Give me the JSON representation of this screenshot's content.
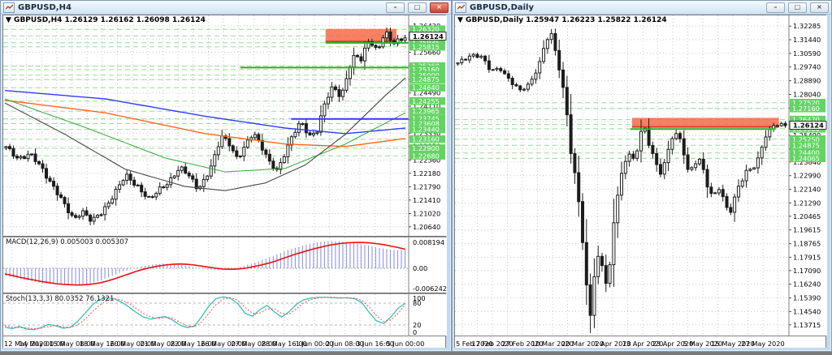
{
  "window_controls": {
    "minimize": "–",
    "restore": "□",
    "close": "×"
  },
  "left_window": {
    "title": "GBPUSD,H4",
    "ohlc_label": "▼ GBPUSD,H4  1.26129 1.26162 1.26098 1.26124",
    "macd_label": "MACD(12,26,9) 0.005003 0.005307",
    "stoch_label": "Stoch(13,3,3) 80.0352 76.1321",
    "macd_scale": [
      "0.008194",
      "0.00",
      "-0.006242"
    ],
    "stoch_scale": [
      "100",
      "80",
      "20",
      "0"
    ],
    "current_price": "1.26124",
    "time_labels": [
      "12 May 2020",
      "14 May 00:00",
      "15 May 08:00",
      "18 May 16:00",
      "20 May 00:00",
      "21 May 08:00",
      "22 May 16:00",
      "26 May 00:00",
      "27 May 08:00",
      "28 May 16:00",
      "1 Jun 00:00",
      "2 Jun 08:00",
      "3 Jun 16:00",
      "5 Jun 00:00"
    ],
    "price_ticks": [
      1.2642,
      1.2604,
      1.2566,
      1.2527,
      1.2488,
      1.2449,
      1.2411,
      1.2372,
      1.2333,
      1.2295,
      1.2256,
      1.2218,
      1.2179,
      1.2141,
      1.2102,
      1.2064
    ],
    "level_prices": [
      1.2632,
      1.2613,
      1.25935,
      1.25815,
      1.2526,
      1.2516,
      1.25,
      1.24875,
      1.2464,
      1.24255,
      1.23965,
      1.23745,
      1.23608,
      1.2344,
      1.2316,
      1.229,
      1.2268
    ]
  },
  "right_window": {
    "title": "GBPUSD,Daily",
    "ohlc_label": "▼ GBPUSD,Daily  1.25947 1.26223 1.25822 1.26124",
    "current_price": "1.26124",
    "time_labels": [
      "5 Feb 2020",
      "17 Feb 2020",
      "27 Feb 2020",
      "10 Mar 2020",
      "20 Mar 2020",
      "1 Apr 2020",
      "13 Apr 2020",
      "23 Apr 2020",
      "5 May 2020",
      "15 May 2020",
      "27 May 2020"
    ],
    "price_ticks": [
      1.32285,
      1.3144,
      1.3059,
      1.2974,
      1.2889,
      1.2804,
      1.2719,
      1.2634,
      1.2549,
      1.2464,
      1.2384,
      1.2299,
      1.2214,
      1.2129,
      1.20465,
      1.19615,
      1.18765,
      1.17915,
      1.1709,
      1.1624,
      1.1539,
      1.1454,
      1.13715
    ],
    "level_prices": [
      1.2752,
      1.2716,
      1.2647,
      1.2617,
      1.259,
      1.2525,
      1.24875,
      1.244,
      1.24065
    ]
  },
  "colors": {
    "level_green": "#98dd98",
    "line_green": "#28b428",
    "line_blue": "#3a3af0",
    "zone_fill": "#f76a4a",
    "zone_edge": "#e0391f",
    "ma_blue": "#2e3ef0",
    "ma_orange": "#ff6820",
    "ma_green": "#3fae49",
    "ma_black": "#474747",
    "macd_hist": "#8c95e6",
    "macd_signal": "#e81010",
    "stoch_main": "#27bdb4",
    "stoch_signal": "#f05050",
    "badge_green": "#62d462",
    "grid": "#c9c9c9"
  },
  "chart_data": [
    {
      "type": "candlestick",
      "symbol": "GBPUSD",
      "timeframe": "H4",
      "open": 1.26129,
      "high": 1.26162,
      "low": 1.26098,
      "close": 1.26124,
      "n_bars": 110,
      "wiggle": 0.0013,
      "close_anchors": [
        [
          0,
          1.2292
        ],
        [
          0.03,
          1.2262
        ],
        [
          0.06,
          1.2272
        ],
        [
          0.09,
          1.2232
        ],
        [
          0.12,
          1.2178
        ],
        [
          0.15,
          1.2118
        ],
        [
          0.17,
          1.2086
        ],
        [
          0.19,
          1.2112
        ],
        [
          0.215,
          1.2078
        ],
        [
          0.24,
          1.2106
        ],
        [
          0.27,
          1.2158
        ],
        [
          0.3,
          1.221
        ],
        [
          0.33,
          1.2182
        ],
        [
          0.36,
          1.214
        ],
        [
          0.385,
          1.2172
        ],
        [
          0.41,
          1.2198
        ],
        [
          0.435,
          1.2232
        ],
        [
          0.46,
          1.221
        ],
        [
          0.48,
          1.2176
        ],
        [
          0.5,
          1.2202
        ],
        [
          0.52,
          1.2252
        ],
        [
          0.54,
          1.2328
        ],
        [
          0.56,
          1.2305
        ],
        [
          0.58,
          1.2256
        ],
        [
          0.6,
          1.2296
        ],
        [
          0.62,
          1.2338
        ],
        [
          0.64,
          1.2298
        ],
        [
          0.66,
          1.2248
        ],
        [
          0.68,
          1.2222
        ],
        [
          0.7,
          1.2282
        ],
        [
          0.72,
          1.2335
        ],
        [
          0.74,
          1.2362
        ],
        [
          0.76,
          1.2322
        ],
        [
          0.78,
          1.2345
        ],
        [
          0.8,
          1.2425
        ],
        [
          0.82,
          1.2465
        ],
        [
          0.84,
          1.2435
        ],
        [
          0.86,
          1.2525
        ],
        [
          0.875,
          1.256
        ],
        [
          0.89,
          1.2542
        ],
        [
          0.91,
          1.2602
        ],
        [
          0.93,
          1.2572
        ],
        [
          0.95,
          1.2625
        ],
        [
          0.97,
          1.2588
        ],
        [
          1,
          1.2612
        ]
      ],
      "ma_series": [
        {
          "name": "ma-blue",
          "anchors": [
            [
              0,
              1.2456
            ],
            [
              0.25,
              1.2432
            ],
            [
              0.5,
              1.2382
            ],
            [
              0.7,
              1.2348
            ],
            [
              0.85,
              1.2332
            ],
            [
              1,
              1.2348
            ]
          ]
        },
        {
          "name": "ma-orange",
          "anchors": [
            [
              0,
              1.2428
            ],
            [
              0.25,
              1.2392
            ],
            [
              0.5,
              1.2332
            ],
            [
              0.7,
              1.2302
            ],
            [
              0.85,
              1.2295
            ],
            [
              1,
              1.2318
            ]
          ]
        },
        {
          "name": "ma-green",
          "anchors": [
            [
              0,
              1.2432
            ],
            [
              0.2,
              1.235
            ],
            [
              0.4,
              1.2262
            ],
            [
              0.55,
              1.2222
            ],
            [
              0.7,
              1.2232
            ],
            [
              0.85,
              1.2302
            ],
            [
              1,
              1.2392
            ]
          ]
        },
        {
          "name": "ma-black",
          "anchors": [
            [
              0,
              1.242
            ],
            [
              0.15,
              1.233
            ],
            [
              0.3,
              1.223
            ],
            [
              0.45,
              1.218
            ],
            [
              0.55,
              1.2168
            ],
            [
              0.65,
              1.219
            ],
            [
              0.75,
              1.2242
            ],
            [
              0.85,
              1.233
            ],
            [
              0.95,
              1.2442
            ],
            [
              1,
              1.2492
            ]
          ]
        }
      ],
      "zone": {
        "price_top": 1.2633,
        "price_bottom": 1.2597,
        "t0": 0.795,
        "t1": 0.97
      },
      "solid_lines": [
        {
          "price": 1.2593,
          "t0": 0.795,
          "t1": 1.0,
          "color_key": "line_green"
        },
        {
          "price": 1.2522,
          "t0": 0.585,
          "t1": 1.0,
          "color_key": "line_green"
        },
        {
          "price": 1.2374,
          "t0": 0.71,
          "t1": 1.0,
          "color_key": "line_blue"
        }
      ],
      "macd": {
        "main": [
          -0.0022,
          -0.0026,
          -0.003,
          -0.0034,
          -0.0038,
          -0.0042,
          -0.0044,
          -0.0046,
          -0.0047,
          -0.0048,
          -0.0047,
          -0.0045,
          -0.004,
          -0.0034,
          -0.0026,
          -0.0018,
          -0.001,
          -0.0004,
          0.0002,
          0.0006,
          0.001,
          0.0012,
          0.0013,
          0.0012,
          0.001,
          0.0006,
          0.0002,
          -0.0002,
          -0.0004,
          -0.0005,
          -0.0004,
          -0.0002,
          0.0002,
          0.0008,
          0.0014,
          0.002,
          0.0028,
          0.0036,
          0.0044,
          0.0052,
          0.0058,
          0.0064,
          0.0069,
          0.0073,
          0.0075,
          0.0076,
          0.0075,
          0.0073,
          0.007,
          0.0067,
          0.0063,
          0.0059,
          0.0055,
          0.0052,
          0.005,
          0.005
        ],
        "signal": [
          -0.0016,
          -0.002,
          -0.0025,
          -0.0029,
          -0.0033,
          -0.0037,
          -0.004,
          -0.0043,
          -0.0045,
          -0.0046,
          -0.0047,
          -0.0046,
          -0.0044,
          -0.0041,
          -0.0036,
          -0.003,
          -0.0023,
          -0.0016,
          -0.0009,
          -0.0003,
          0.0002,
          0.0006,
          0.0009,
          0.0011,
          0.0012,
          0.0011,
          0.0009,
          0.0006,
          0.0003,
          0.0,
          -0.0002,
          -0.0003,
          -0.0002,
          0.0,
          0.0004,
          0.0008,
          0.0013,
          0.0019,
          0.0026,
          0.0033,
          0.004,
          0.0046,
          0.0052,
          0.0057,
          0.0062,
          0.0066,
          0.0069,
          0.0071,
          0.0072,
          0.0072,
          0.0071,
          0.0069,
          0.0066,
          0.0062,
          0.0058,
          0.0053
        ],
        "last_main": 0.005003,
        "last_signal": 0.005307
      },
      "stoch": {
        "main": [
          14,
          10,
          16,
          9,
          7,
          13,
          22,
          18,
          11,
          14,
          30,
          52,
          75,
          90,
          95,
          92,
          83,
          70,
          55,
          42,
          36,
          40,
          43,
          34,
          20,
          13,
          17,
          42,
          72,
          92,
          97,
          93,
          78,
          52,
          44,
          62,
          74,
          56,
          42,
          56,
          76,
          89,
          94,
          96,
          96,
          95,
          94,
          95,
          92,
          82,
          55,
          32,
          24,
          42,
          66,
          80
        ],
        "signal": [
          18,
          14,
          13,
          12,
          10,
          11,
          16,
          19,
          15,
          13,
          20,
          36,
          56,
          74,
          87,
          92,
          89,
          80,
          66,
          52,
          42,
          38,
          41,
          39,
          28,
          18,
          15,
          28,
          52,
          76,
          91,
          95,
          88,
          68,
          52,
          52,
          64,
          64,
          52,
          50,
          64,
          80,
          90,
          94,
          96,
          96,
          95,
          94,
          94,
          88,
          70,
          46,
          30,
          34,
          52,
          76
        ],
        "last_main": 80.0352,
        "last_signal": 76.1321
      }
    },
    {
      "type": "candlestick",
      "symbol": "GBPUSD",
      "timeframe": "Daily",
      "open": 1.25947,
      "high": 1.26223,
      "low": 1.25822,
      "close": 1.26124,
      "n_bars": 85,
      "wiggle": 0.0022,
      "close_anchors": [
        [
          0,
          1.2995
        ],
        [
          0.04,
          1.3052
        ],
        [
          0.07,
          1.3042
        ],
        [
          0.1,
          1.2948
        ],
        [
          0.13,
          1.2968
        ],
        [
          0.16,
          1.2888
        ],
        [
          0.19,
          1.2822
        ],
        [
          0.22,
          1.2872
        ],
        [
          0.25,
          1.3005
        ],
        [
          0.27,
          1.3142
        ],
        [
          0.285,
          1.3175
        ],
        [
          0.3,
          1.3052
        ],
        [
          0.315,
          1.2915
        ],
        [
          0.33,
          1.2748
        ],
        [
          0.345,
          1.2452
        ],
        [
          0.36,
          1.2275
        ],
        [
          0.375,
          1.2042
        ],
        [
          0.39,
          1.1648
        ],
        [
          0.405,
          1.1428
        ],
        [
          0.42,
          1.1755
        ],
        [
          0.435,
          1.1822
        ],
        [
          0.45,
          1.1618
        ],
        [
          0.465,
          1.1738
        ],
        [
          0.48,
          1.2095
        ],
        [
          0.5,
          1.2302
        ],
        [
          0.52,
          1.2458
        ],
        [
          0.535,
          1.2398
        ],
        [
          0.55,
          1.2472
        ],
        [
          0.565,
          1.2635
        ],
        [
          0.58,
          1.2502
        ],
        [
          0.6,
          1.2418
        ],
        [
          0.615,
          1.2298
        ],
        [
          0.63,
          1.2382
        ],
        [
          0.645,
          1.2468
        ],
        [
          0.66,
          1.2572
        ],
        [
          0.675,
          1.2538
        ],
        [
          0.69,
          1.2438
        ],
        [
          0.705,
          1.2318
        ],
        [
          0.72,
          1.2362
        ],
        [
          0.735,
          1.2422
        ],
        [
          0.75,
          1.2328
        ],
        [
          0.765,
          1.2208
        ],
        [
          0.78,
          1.2162
        ],
        [
          0.8,
          1.2232
        ],
        [
          0.82,
          1.2102
        ],
        [
          0.835,
          1.2082
        ],
        [
          0.85,
          1.2198
        ],
        [
          0.865,
          1.2252
        ],
        [
          0.88,
          1.2322
        ],
        [
          0.9,
          1.2342
        ],
        [
          0.92,
          1.2422
        ],
        [
          0.94,
          1.2548
        ],
        [
          0.96,
          1.2598
        ],
        [
          0.98,
          1.2618
        ],
        [
          1,
          1.2612
        ]
      ],
      "ma_series": [],
      "zone": {
        "price_top": 1.2658,
        "price_bottom": 1.2602,
        "t0": 0.53,
        "t1": 0.97
      },
      "solid_lines": [
        {
          "price": 1.2588,
          "t0": 0.525,
          "t1": 0.96,
          "color_key": "line_green"
        }
      ]
    }
  ]
}
